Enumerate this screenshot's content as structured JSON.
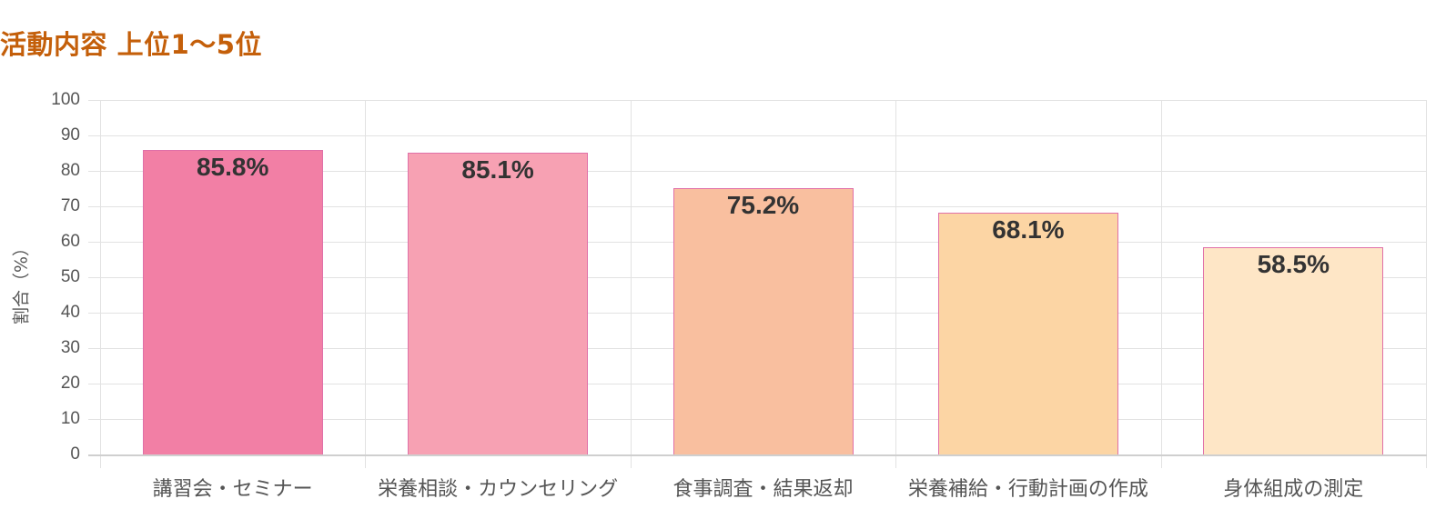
{
  "title": "活動内容 上位1〜5位",
  "y_axis": {
    "label": "割合（%）",
    "ticks": [
      "100",
      "90",
      "80",
      "70",
      "60",
      "50",
      "40",
      "30",
      "20",
      "10",
      "0"
    ]
  },
  "bars": [
    {
      "label": "講習会・セミナー",
      "value": 85.8,
      "value_label": "85.8%",
      "color": "#f27fa5"
    },
    {
      "label": "栄養相談・カウンセリング",
      "value": 85.1,
      "value_label": "85.1%",
      "color": "#f7a1b3"
    },
    {
      "label": "食事調査・結果返却",
      "value": 75.2,
      "value_label": "75.2%",
      "color": "#f9bf9f"
    },
    {
      "label": "栄養補給・行動計画の作成",
      "value": 68.1,
      "value_label": "68.1%",
      "color": "#fcd5a4"
    },
    {
      "label": "身体組成の測定",
      "value": 58.5,
      "value_label": "58.5%",
      "color": "#fee6c6"
    }
  ],
  "chart_data": {
    "type": "bar",
    "title": "活動内容 上位1〜5位",
    "categories": [
      "講習会・セミナー",
      "栄養相談・カウンセリング",
      "食事調査・結果返却",
      "栄養補給・行動計画の作成",
      "身体組成の測定"
    ],
    "values": [
      85.8,
      85.1,
      75.2,
      68.1,
      58.5
    ],
    "value_labels": [
      "85.8%",
      "85.1%",
      "75.2%",
      "68.1%",
      "58.5%"
    ],
    "colors": [
      "#f27fa5",
      "#f7a1b3",
      "#f9bf9f",
      "#fcd5a4",
      "#fee6c6"
    ],
    "border_color": "#e070a8",
    "xlabel": "",
    "ylabel": "割合（%）",
    "ylim": [
      0,
      100
    ],
    "yticks": [
      0,
      10,
      20,
      30,
      40,
      50,
      60,
      70,
      80,
      90,
      100
    ],
    "grid": true,
    "legend": "none"
  }
}
